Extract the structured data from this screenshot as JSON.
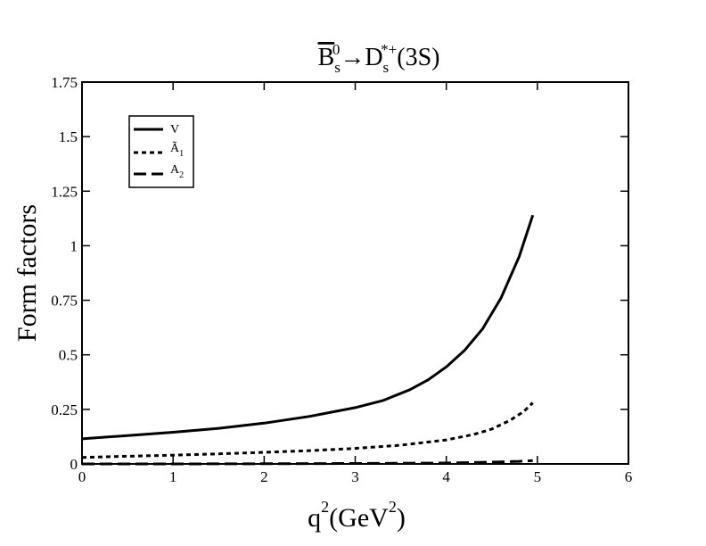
{
  "chart_data": {
    "type": "line",
    "title": {
      "prefix": "B",
      "prefix_sub": "s",
      "prefix_sup": "0",
      "arrow": "→",
      "product": "D",
      "product_sub": "s",
      "product_sup": "*+",
      "state": "(3S)"
    },
    "xlabel": {
      "main": "q",
      "sup": "2",
      "unit_open": "(GeV",
      "unit_sup": "2",
      "unit_close": ")"
    },
    "ylabel": "Form factors",
    "xlim": [
      0,
      6
    ],
    "ylim": [
      0,
      1.75
    ],
    "x_ticks": [
      {
        "value": 0,
        "label": "0"
      },
      {
        "value": 1,
        "label": "1"
      },
      {
        "value": 2,
        "label": "2"
      },
      {
        "value": 3,
        "label": "3"
      },
      {
        "value": 4,
        "label": "4"
      },
      {
        "value": 5,
        "label": "5"
      },
      {
        "value": 6,
        "label": "6"
      }
    ],
    "y_ticks": [
      {
        "value": 0,
        "label": "0"
      },
      {
        "value": 0.25,
        "label": "0.25"
      },
      {
        "value": 0.5,
        "label": "0.5"
      },
      {
        "value": 0.75,
        "label": "0.75"
      },
      {
        "value": 1,
        "label": "1"
      },
      {
        "value": 1.25,
        "label": "1.25"
      },
      {
        "value": 1.5,
        "label": "1.5"
      },
      {
        "value": 1.75,
        "label": "1.75"
      }
    ],
    "grid": false,
    "legend_position": "top-left",
    "series": [
      {
        "name": "V",
        "style": "solid",
        "x": [
          0,
          0.5,
          1,
          1.5,
          2,
          2.5,
          3,
          3.3,
          3.6,
          3.8,
          4.0,
          4.2,
          4.4,
          4.6,
          4.8,
          4.95
        ],
        "y": [
          0.115,
          0.13,
          0.145,
          0.163,
          0.187,
          0.218,
          0.258,
          0.29,
          0.34,
          0.385,
          0.445,
          0.52,
          0.62,
          0.76,
          0.95,
          1.14
        ]
      },
      {
        "name": "Ã",
        "sub": "1",
        "style": "dotted",
        "x": [
          0,
          0.5,
          1,
          1.5,
          2,
          2.5,
          3,
          3.5,
          4.0,
          4.3,
          4.5,
          4.7,
          4.85,
          4.95
        ],
        "y": [
          0.03,
          0.035,
          0.04,
          0.046,
          0.053,
          0.061,
          0.071,
          0.086,
          0.11,
          0.135,
          0.16,
          0.2,
          0.24,
          0.28
        ]
      },
      {
        "name": "A",
        "sub": "2",
        "style": "dashed",
        "x": [
          0,
          1,
          2,
          3,
          4,
          4.5,
          4.8,
          4.95
        ],
        "y": [
          0.0,
          0.0,
          0.001,
          0.002,
          0.004,
          0.008,
          0.012,
          0.015
        ]
      }
    ]
  }
}
